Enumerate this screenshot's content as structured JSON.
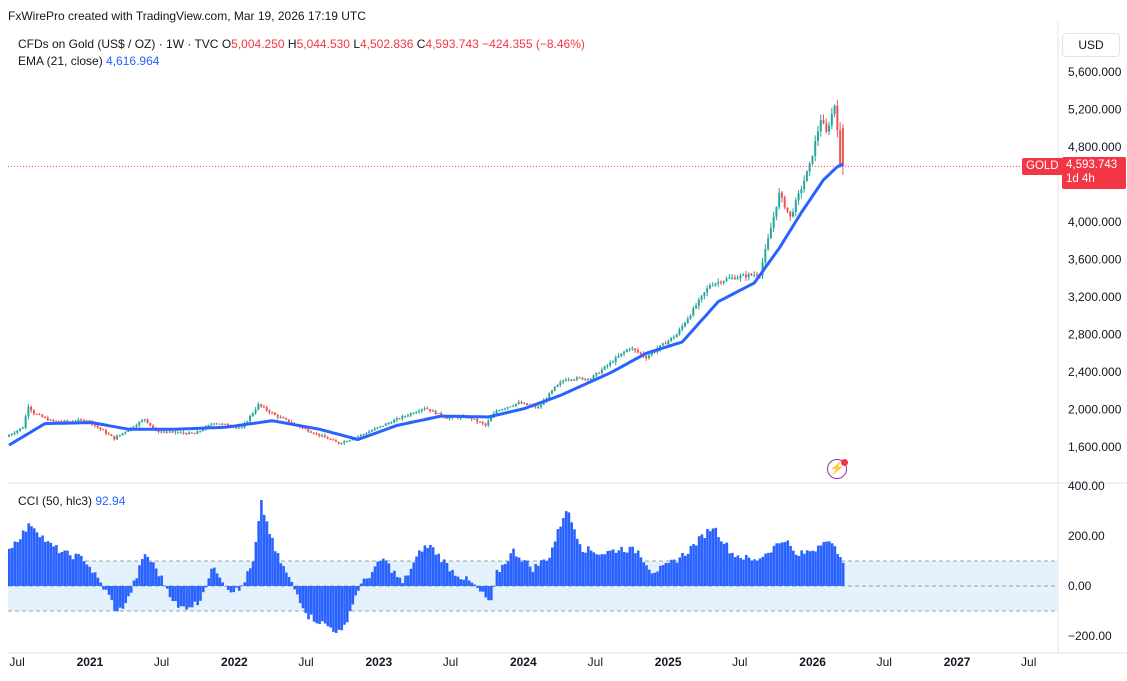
{
  "watermark": "FxWirePro created with TradingView.com, Mar 19, 2026 17:19 UTC",
  "header": {
    "symbol": "CFDs on Gold (US$ / OZ) · 1W · TVC",
    "o_label": "O",
    "o_value": "5,004.250",
    "h_label": "H",
    "h_value": "5,044.530",
    "l_label": "L",
    "l_value": "4,502.836",
    "c_label": "C",
    "c_value": "4,593.743",
    "change": "−424.355 (−8.46%)",
    "ema_label": "EMA (21, close)",
    "ema_value": "4,616.964"
  },
  "currency_button": "USD",
  "price_tag": {
    "symbol": "GOLD",
    "price": "4,593.743",
    "countdown": "1d 4h"
  },
  "cci_header": {
    "label": "CCI (50, hlc3)",
    "value": "92.94"
  },
  "colors": {
    "up": "#26a69a",
    "down": "#ef5350",
    "ema": "#2962ff",
    "cci": "#2962ff",
    "last_price": "#f23645",
    "cci_band": "#e3f2fd"
  },
  "icons": {
    "alert": "lightning-bolt-icon"
  },
  "chart_data": [
    {
      "type": "candlestick",
      "title": "CFDs on Gold (US$ / OZ)",
      "interval": "1W",
      "y_ticks": [
        "5,600.000",
        "5,200.000",
        "4,800.000",
        "4,000.000",
        "3,600.000",
        "3,200.000",
        "2,800.000",
        "2,400.000",
        "2,000.000",
        "1,600.000"
      ],
      "ylim": [
        1450,
        5750
      ],
      "last_price": 4593.743,
      "x_ticks": [
        "Jul",
        "2021",
        "Jul",
        "2022",
        "Jul",
        "2023",
        "Jul",
        "2024",
        "Jul",
        "2025",
        "Jul",
        "2026",
        "Jul",
        "2027",
        "Jul"
      ],
      "x_range": [
        "2020-06-08",
        "2027-09-13"
      ],
      "price_path": [
        [
          "2020-06-08",
          1710
        ],
        [
          "2020-07-20",
          1810
        ],
        [
          "2020-08-03",
          2040
        ],
        [
          "2020-08-17",
          1960
        ],
        [
          "2020-09-28",
          1880
        ],
        [
          "2020-11-09",
          1870
        ],
        [
          "2020-12-28",
          1890
        ],
        [
          "2021-03-08",
          1690
        ],
        [
          "2021-05-24",
          1900
        ],
        [
          "2021-06-21",
          1770
        ],
        [
          "2021-09-27",
          1740
        ],
        [
          "2021-11-15",
          1860
        ],
        [
          "2022-01-24",
          1800
        ],
        [
          "2022-03-07",
          2050
        ],
        [
          "2022-04-18",
          1940
        ],
        [
          "2022-06-27",
          1800
        ],
        [
          "2022-09-26",
          1640
        ],
        [
          "2022-11-07",
          1700
        ],
        [
          "2023-02-06",
          1870
        ],
        [
          "2023-05-01",
          2020
        ],
        [
          "2023-06-26",
          1910
        ],
        [
          "2023-08-21",
          1920
        ],
        [
          "2023-10-02",
          1830
        ],
        [
          "2023-10-30",
          1990
        ],
        [
          "2023-12-25",
          2070
        ],
        [
          "2024-02-12",
          2020
        ],
        [
          "2024-03-25",
          2230
        ],
        [
          "2024-04-22",
          2330
        ],
        [
          "2024-06-24",
          2330
        ],
        [
          "2024-09-30",
          2660
        ],
        [
          "2024-11-11",
          2560
        ],
        [
          "2025-01-27",
          2800
        ],
        [
          "2025-04-21",
          3330
        ],
        [
          "2025-06-09",
          3400
        ],
        [
          "2025-08-25",
          3450
        ],
        [
          "2025-10-13",
          4300
        ],
        [
          "2025-11-10",
          4050
        ],
        [
          "2025-12-29",
          4600
        ],
        [
          "2026-01-26",
          5100
        ],
        [
          "2026-02-09",
          4950
        ],
        [
          "2026-03-02",
          5250
        ],
        [
          "2026-03-09",
          5010
        ],
        [
          "2026-03-16",
          4594
        ]
      ],
      "last_candle": {
        "open": 5004.25,
        "high": 5044.53,
        "low": 4502.836,
        "close": 4593.743
      },
      "series": [
        {
          "name": "EMA (21, close)",
          "points": [
            [
              "2020-06-08",
              1620
            ],
            [
              "2020-09-07",
              1850
            ],
            [
              "2021-01-04",
              1860
            ],
            [
              "2021-04-05",
              1790
            ],
            [
              "2021-08-02",
              1790
            ],
            [
              "2021-12-06",
              1810
            ],
            [
              "2022-04-04",
              1880
            ],
            [
              "2022-08-01",
              1790
            ],
            [
              "2022-11-07",
              1680
            ],
            [
              "2023-02-13",
              1830
            ],
            [
              "2023-06-05",
              1930
            ],
            [
              "2023-10-02",
              1920
            ],
            [
              "2024-01-01",
              2010
            ],
            [
              "2024-04-01",
              2150
            ],
            [
              "2024-08-05",
              2390
            ],
            [
              "2024-11-04",
              2600
            ],
            [
              "2025-02-03",
              2720
            ],
            [
              "2025-05-05",
              3150
            ],
            [
              "2025-08-04",
              3350
            ],
            [
              "2025-10-06",
              3720
            ],
            [
              "2025-12-01",
              4100
            ],
            [
              "2026-01-26",
              4450
            ],
            [
              "2026-03-02",
              4590
            ],
            [
              "2026-03-16",
              4617
            ]
          ]
        }
      ]
    },
    {
      "type": "bar",
      "title": "CCI (50, hlc3)",
      "y_ticks": [
        "400.00",
        "200.00",
        "0.00",
        "−200.00"
      ],
      "ylim": [
        -200,
        400
      ],
      "bands": [
        100,
        -100
      ],
      "last_value": 92.94,
      "anchors": [
        [
          "2020-06-08",
          150
        ],
        [
          "2020-08-03",
          250
        ],
        [
          "2020-09-14",
          170
        ],
        [
          "2020-10-26",
          130
        ],
        [
          "2020-12-14",
          110
        ],
        [
          "2021-02-15",
          -40
        ],
        [
          "2021-03-08",
          -110
        ],
        [
          "2021-04-05",
          -50
        ],
        [
          "2021-05-17",
          130
        ],
        [
          "2021-06-14",
          70
        ],
        [
          "2021-08-09",
          -90
        ],
        [
          "2021-09-27",
          -70
        ],
        [
          "2021-11-08",
          80
        ],
        [
          "2021-12-13",
          -10
        ],
        [
          "2022-01-10",
          -20
        ],
        [
          "2022-02-14",
          90
        ],
        [
          "2022-03-07",
          330
        ],
        [
          "2022-04-11",
          140
        ],
        [
          "2022-05-16",
          30
        ],
        [
          "2022-07-04",
          -120
        ],
        [
          "2022-09-26",
          -190
        ],
        [
          "2022-11-07",
          -10
        ],
        [
          "2023-01-09",
          110
        ],
        [
          "2023-02-27",
          10
        ],
        [
          "2023-04-17",
          150
        ],
        [
          "2023-05-08",
          160
        ],
        [
          "2023-07-03",
          60
        ],
        [
          "2023-08-21",
          10
        ],
        [
          "2023-10-09",
          -70
        ],
        [
          "2023-10-23",
          50
        ],
        [
          "2023-12-04",
          140
        ],
        [
          "2024-01-22",
          70
        ],
        [
          "2024-03-04",
          120
        ],
        [
          "2024-04-15",
          310
        ],
        [
          "2024-05-27",
          150
        ],
        [
          "2024-07-15",
          130
        ],
        [
          "2024-09-02",
          150
        ],
        [
          "2024-10-14",
          140
        ],
        [
          "2024-11-18",
          60
        ],
        [
          "2024-12-16",
          70
        ],
        [
          "2025-02-10",
          130
        ],
        [
          "2025-04-21",
          240
        ],
        [
          "2025-06-09",
          130
        ],
        [
          "2025-08-04",
          100
        ],
        [
          "2025-09-01",
          130
        ],
        [
          "2025-10-20",
          190
        ],
        [
          "2025-11-17",
          120
        ],
        [
          "2026-01-05",
          150
        ],
        [
          "2026-01-26",
          190
        ],
        [
          "2026-03-09",
          130
        ],
        [
          "2026-03-16",
          93
        ]
      ]
    }
  ]
}
